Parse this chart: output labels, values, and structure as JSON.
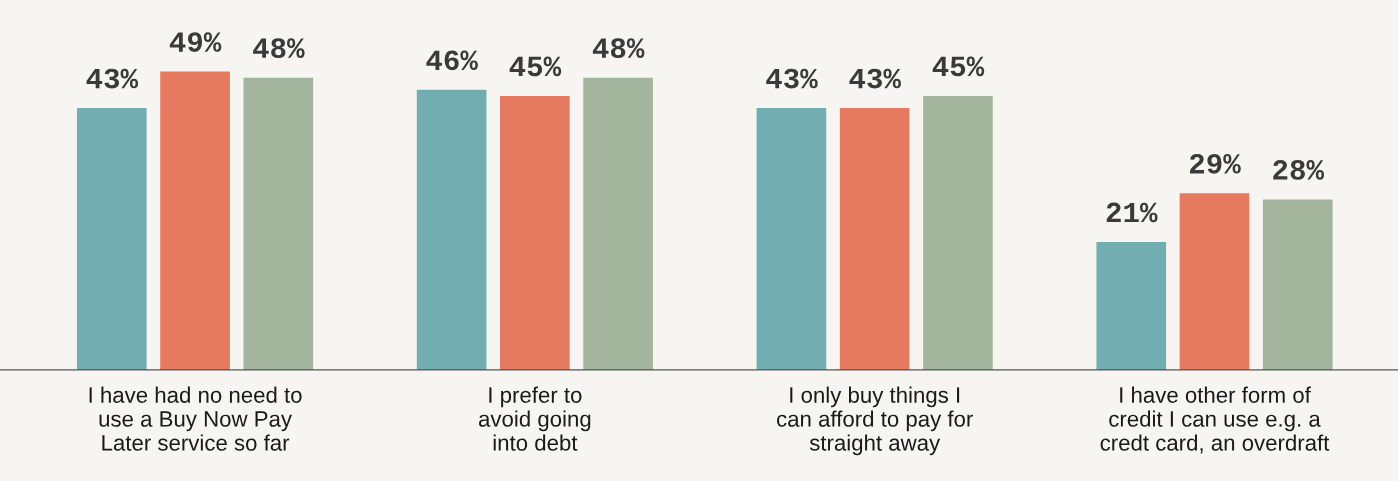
{
  "chart_data": {
    "type": "bar",
    "categories": [
      "I have had no need to\nuse a Buy Now Pay\nLater service so far",
      "I prefer to\navoid going\ninto debt",
      "I only buy things I\ncan afford to pay for\nstraight away",
      "I have other form of\ncredit I can use e.g. a\ncredt card, an overdraft"
    ],
    "series": [
      {
        "color": "#72aeb1",
        "values": [
          43,
          46,
          43,
          21
        ],
        "value_labels": [
          "43%",
          "46%",
          "43%",
          "21%"
        ]
      },
      {
        "color": "#e57a60",
        "values": [
          49,
          45,
          43,
          29
        ],
        "value_labels": [
          "49%",
          "45%",
          "43%",
          "29%"
        ]
      },
      {
        "color": "#a3b59c",
        "values": [
          48,
          48,
          45,
          28
        ],
        "value_labels": [
          "48%",
          "48%",
          "45%",
          "28%"
        ]
      }
    ],
    "grid": false,
    "legend": false
  }
}
